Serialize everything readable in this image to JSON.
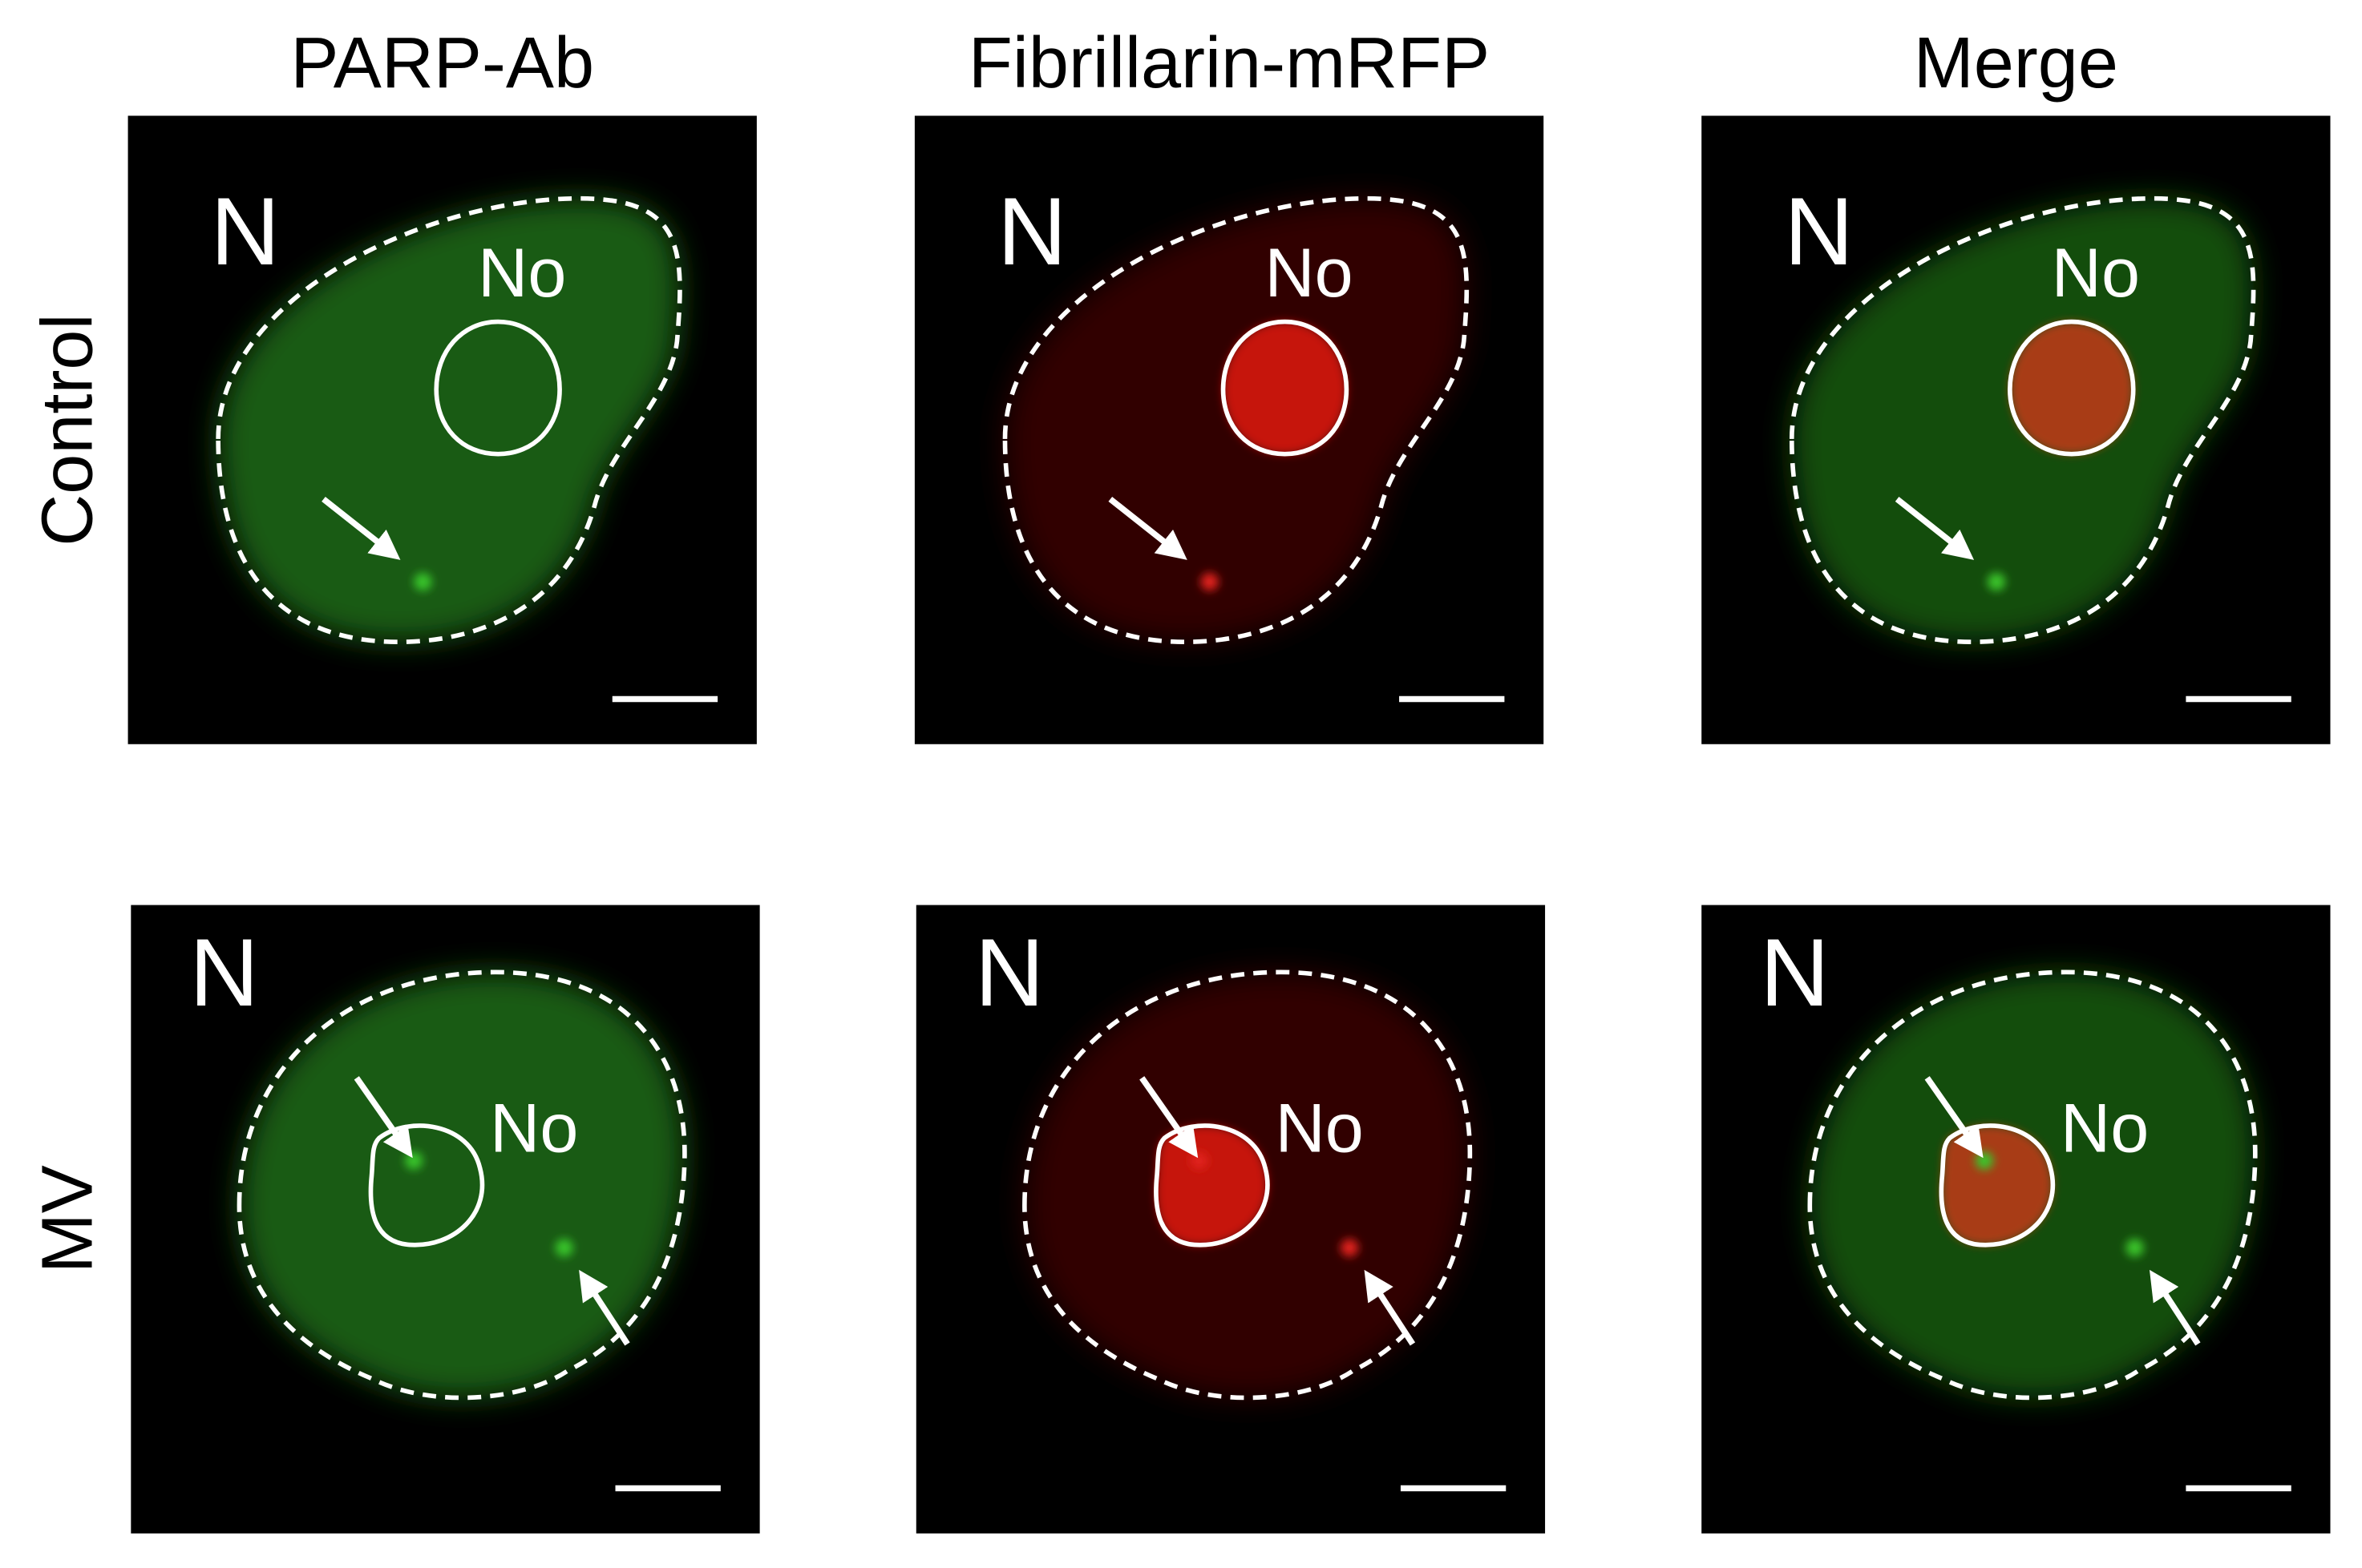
{
  "columns": [
    "PARP-Ab",
    "Fibrillarin-mRFP",
    "Merge"
  ],
  "rows": [
    "Control",
    "MV"
  ],
  "panels": [
    [
      {
        "nucleus_label": "N",
        "nucleolus_label": "No"
      },
      {
        "nucleus_label": "N",
        "nucleolus_label": "No"
      },
      {
        "nucleus_label": "N",
        "nucleolus_label": "No"
      }
    ],
    [
      {
        "nucleus_label": "N",
        "nucleolus_label": "No"
      },
      {
        "nucleus_label": "N",
        "nucleolus_label": "No"
      },
      {
        "nucleus_label": "N",
        "nucleolus_label": "No"
      }
    ]
  ]
}
